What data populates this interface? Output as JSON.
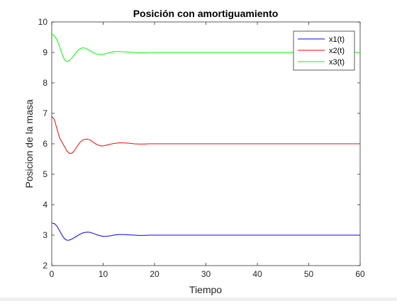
{
  "chart_data": {
    "type": "line",
    "title": "Posición con amortiguamiento",
    "xlabel": "Tiempo",
    "ylabel": "Posicion de la masa",
    "xlim": [
      0,
      60
    ],
    "ylim": [
      2,
      10
    ],
    "xticks": [
      0,
      10,
      20,
      30,
      40,
      50,
      60
    ],
    "yticks": [
      2,
      3,
      4,
      5,
      6,
      7,
      8,
      9,
      10
    ],
    "grid": false,
    "legend_position": "top-right",
    "x": [
      0,
      0.5,
      1,
      1.5,
      2,
      2.5,
      3,
      3.5,
      4,
      4.5,
      5,
      5.5,
      6,
      6.5,
      7,
      7.5,
      8,
      8.5,
      9,
      9.5,
      10,
      10.5,
      11,
      11.5,
      12,
      13,
      14,
      15,
      16,
      17,
      18,
      19,
      20,
      22,
      24,
      26,
      28,
      30,
      35,
      40,
      45,
      50,
      55,
      60
    ],
    "series": [
      {
        "name": "x1(t)",
        "color": "#0000ff",
        "values": [
          3.4,
          3.38,
          3.3,
          3.15,
          3.0,
          2.88,
          2.83,
          2.84,
          2.88,
          2.93,
          2.98,
          3.03,
          3.07,
          3.09,
          3.1,
          3.09,
          3.06,
          3.03,
          3.0,
          2.98,
          2.96,
          2.96,
          2.97,
          2.98,
          3.0,
          3.02,
          3.02,
          3.01,
          3.0,
          2.99,
          2.99,
          3.0,
          3.0,
          3.0,
          3.0,
          3.0,
          3.0,
          3.0,
          3.0,
          3.0,
          3.0,
          3.0,
          3.0,
          3.0
        ]
      },
      {
        "name": "x2(t)",
        "color": "#ff0000",
        "values": [
          6.9,
          6.8,
          6.5,
          6.2,
          6.05,
          5.9,
          5.75,
          5.68,
          5.7,
          5.8,
          5.93,
          6.05,
          6.12,
          6.15,
          6.15,
          6.12,
          6.06,
          6.0,
          5.96,
          5.93,
          5.93,
          5.95,
          5.97,
          5.99,
          6.01,
          6.03,
          6.03,
          6.02,
          6.0,
          5.99,
          5.99,
          6.0,
          6.0,
          6.0,
          6.0,
          6.0,
          6.0,
          6.0,
          6.0,
          6.0,
          6.0,
          6.0,
          6.0,
          6.0
        ]
      },
      {
        "name": "x3(t)",
        "color": "#00ff00",
        "values": [
          9.6,
          9.55,
          9.42,
          9.2,
          8.95,
          8.75,
          8.7,
          8.74,
          8.83,
          8.95,
          9.05,
          9.12,
          9.15,
          9.14,
          9.1,
          9.05,
          9.0,
          8.96,
          8.94,
          8.93,
          8.94,
          8.96,
          8.98,
          9.0,
          9.02,
          9.03,
          9.02,
          9.01,
          9.0,
          8.99,
          8.99,
          9.0,
          9.0,
          9.0,
          9.0,
          9.0,
          9.0,
          9.0,
          9.0,
          9.0,
          9.0,
          9.0,
          9.0,
          9.0
        ]
      }
    ]
  }
}
